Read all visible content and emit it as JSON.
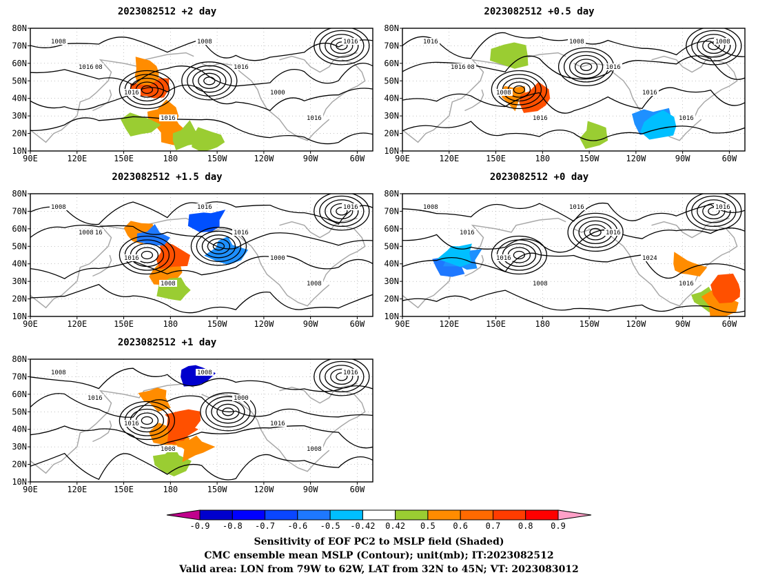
{
  "panels": [
    {
      "title": "2023082512 +2 day",
      "contour_labels": [
        "1008",
        "1008",
        "1016",
        "1016",
        "1008",
        "1016",
        "1000",
        "1016",
        "1016",
        "1016"
      ],
      "patches": [
        [
          175,
          30,
          "#ff8c00"
        ],
        [
          180,
          22,
          "#ff8c00"
        ],
        [
          168,
          45,
          "#ff5000"
        ],
        [
          165,
          55,
          "#ff8c00"
        ],
        [
          190,
          18,
          "#9acd32"
        ],
        [
          160,
          25,
          "#9acd32"
        ],
        [
          205,
          15,
          "#9acd32"
        ]
      ]
    },
    {
      "title": "2023082512 +0.5 day",
      "contour_labels": [
        "1016",
        "1008",
        "1008",
        "1016",
        "1008",
        "1016",
        "1016",
        "1016",
        "1008",
        "1016"
      ],
      "patches": [
        [
          160,
          42,
          "#ff8c00"
        ],
        [
          175,
          40,
          "#ff5000"
        ],
        [
          160,
          65,
          "#9acd32"
        ],
        [
          250,
          28,
          "#1e90ff"
        ],
        [
          255,
          24,
          "#00bfff"
        ],
        [
          215,
          20,
          "#9acd32"
        ]
      ]
    },
    {
      "title": "2023082512 +1.5 day",
      "contour_labels": [
        "1008",
        "1016",
        "1016",
        "1008",
        "1016",
        "1016",
        "1000",
        "1008",
        "1016",
        "1008"
      ],
      "patches": [
        [
          175,
          35,
          "#ff8c00"
        ],
        [
          180,
          45,
          "#ff5000"
        ],
        [
          185,
          25,
          "#9acd32"
        ],
        [
          160,
          58,
          "#ff8c00"
        ],
        [
          168,
          55,
          "#1e78ff"
        ],
        [
          205,
          65,
          "#0050ff"
        ],
        [
          215,
          48,
          "#1e90ff"
        ]
      ]
    },
    {
      "title": "2023082512 +0 day",
      "contour_labels": [
        "1008",
        "1016",
        "1016",
        "1008",
        "1016",
        "1016",
        "1024",
        "1016",
        "1016"
      ],
      "patches": [
        [
          120,
          40,
          "#1e78ff"
        ],
        [
          130,
          42,
          "#1e90ff"
        ],
        [
          125,
          46,
          "#00bfff"
        ],
        [
          272,
          38,
          "#ff8c00"
        ],
        [
          285,
          20,
          "#9acd32"
        ],
        [
          295,
          18,
          "#ff8c00"
        ],
        [
          300,
          25,
          "#ff5000"
        ]
      ]
    },
    {
      "title": "2023082512 +1 day",
      "contour_labels": [
        "1008",
        "1016",
        "1016",
        "1008",
        "1008",
        "1000",
        "1016",
        "1008",
        "1016"
      ],
      "patches": [
        [
          180,
          35,
          "#ff8c00"
        ],
        [
          185,
          40,
          "#ff5000"
        ],
        [
          180,
          22,
          "#9acd32"
        ],
        [
          170,
          58,
          "#ff8c00"
        ],
        [
          195,
          72,
          "#0000cd"
        ],
        [
          190,
          45,
          "#ff5000"
        ],
        [
          195,
          30,
          "#ff8c00"
        ]
      ]
    }
  ],
  "axes": {
    "lat_ticks": [
      "10N",
      "20N",
      "30N",
      "40N",
      "50N",
      "60N",
      "70N",
      "80N"
    ],
    "lon_ticks": [
      "90E",
      "120E",
      "150E",
      "180",
      "150W",
      "120W",
      "90W",
      "60W"
    ]
  },
  "colorbar": {
    "labels": [
      "-0.9",
      "-0.8",
      "-0.7",
      "-0.6",
      "-0.5",
      "-0.42",
      "0.42",
      "0.5",
      "0.6",
      "0.7",
      "0.8",
      "0.9"
    ],
    "colors": [
      "#c0008c",
      "#0000cd",
      "#0000ff",
      "#0a46ff",
      "#1e78ff",
      "#00bfff",
      "#ffffff",
      "#9acd32",
      "#ff8c00",
      "#ff6a00",
      "#ff3c00",
      "#ff0000",
      "#ffa0c8"
    ]
  },
  "footer": {
    "line1": "Sensitivity of EOF PC2 to MSLP field (Shaded)",
    "line2": "CMC ensemble mean MSLP (Contour); unit(mb); IT:2023082512",
    "line3": "Valid area: LON from 79W to 62W, LAT from 32N to 45N; VT: 2023083012"
  }
}
